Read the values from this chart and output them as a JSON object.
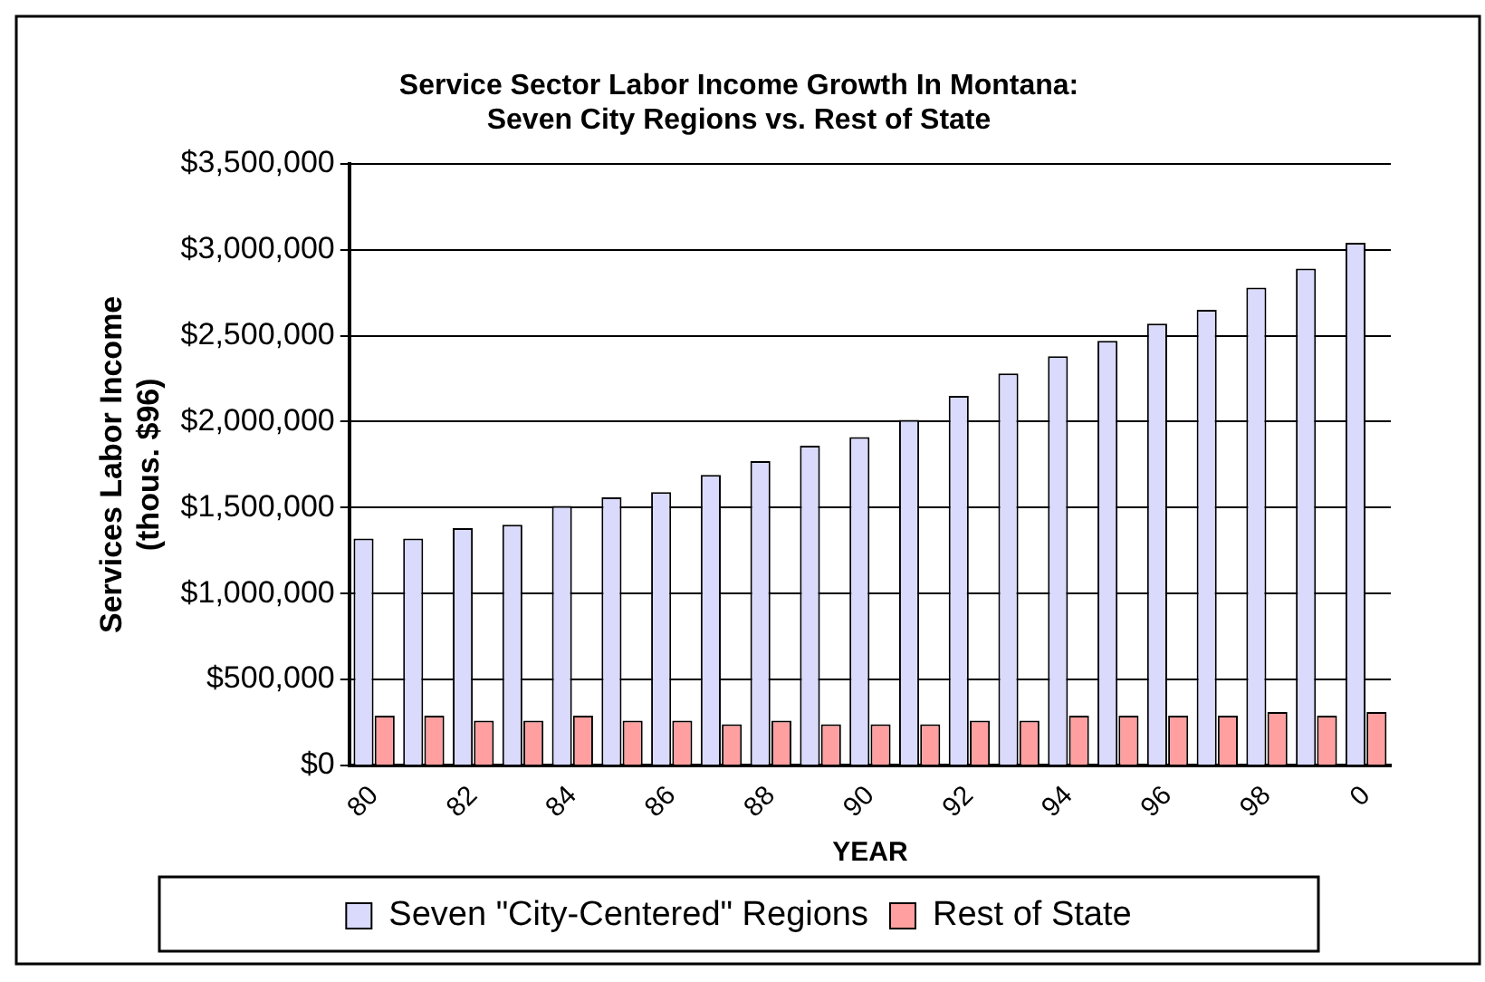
{
  "chart_data": {
    "type": "bar",
    "title": "Service Sector Labor Income Growth In Montana:\nSeven City Regions vs. Rest of State",
    "xlabel": "YEAR",
    "ylabel": "Services Labor Income\n(thous. $96)",
    "categories": [
      "80",
      null,
      "82",
      null,
      "84",
      null,
      "86",
      null,
      "88",
      null,
      "90",
      null,
      "92",
      null,
      "94",
      null,
      "96",
      null,
      "98",
      null,
      "0"
    ],
    "series": [
      {
        "name": "Seven \"City-Centered\" Regions",
        "color": "#d9dafc",
        "values": [
          1320000,
          1320000,
          1380000,
          1400000,
          1510000,
          1560000,
          1590000,
          1690000,
          1770000,
          1860000,
          1910000,
          2010000,
          2150000,
          2280000,
          2380000,
          2470000,
          2570000,
          2650000,
          2780000,
          2890000,
          3040000
        ]
      },
      {
        "name": "Rest of State",
        "color": "#ff9f9f",
        "values": [
          290000,
          290000,
          260000,
          260000,
          290000,
          260000,
          260000,
          240000,
          260000,
          240000,
          240000,
          240000,
          260000,
          260000,
          290000,
          290000,
          290000,
          290000,
          310000,
          290000,
          310000
        ]
      }
    ],
    "ylim": [
      0,
      3500000
    ],
    "yticks": [
      {
        "value": 0,
        "label": "$0"
      },
      {
        "value": 500000,
        "label": "$500,000"
      },
      {
        "value": 1000000,
        "label": "$1,000,000"
      },
      {
        "value": 1500000,
        "label": "$1,500,000"
      },
      {
        "value": 2000000,
        "label": "$2,000,000"
      },
      {
        "value": 2500000,
        "label": "$2,500,000"
      },
      {
        "value": 3000000,
        "label": "$3,000,000"
      },
      {
        "value": 3500000,
        "label": "$3,500,000"
      }
    ],
    "grid": "y",
    "legend": "bottom"
  }
}
